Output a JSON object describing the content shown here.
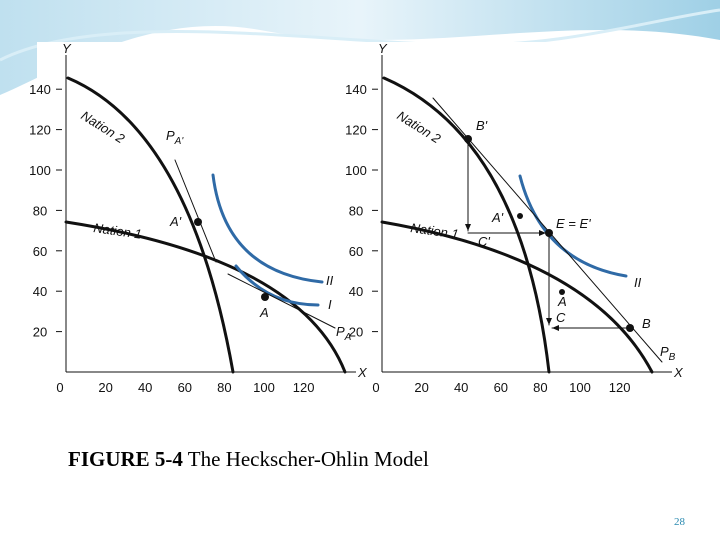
{
  "panels": [
    {
      "y_axis": "Y",
      "x_axis": "X",
      "yticks": [
        140,
        120,
        100,
        80,
        60,
        40,
        20
      ],
      "xticks": [
        0,
        20,
        40,
        60,
        80,
        100,
        120
      ],
      "labels": {
        "nation_2": "Nation 2",
        "nation_1": "Nation 1",
        "price_a_prime": {
          "base": "P",
          "sub": "A'"
        },
        "a_prime": "A'",
        "a": "A",
        "indiff_2": "II",
        "indiff_1": "I",
        "price_a": {
          "base": "P",
          "sub": "A"
        }
      }
    },
    {
      "y_axis": "Y",
      "x_axis": "X",
      "yticks": [
        140,
        120,
        100,
        80,
        60,
        40,
        20
      ],
      "xticks": [
        0,
        20,
        40,
        60,
        80,
        100,
        120
      ],
      "labels": {
        "nation_2": "Nation 2",
        "nation_1": "Nation 1",
        "b_prime": "B'",
        "a_prime": "A'",
        "c_prime": "C'",
        "e": "E = E'",
        "a": "A",
        "c": "C",
        "b": "B",
        "indiff_2": "II",
        "price_b": {
          "base": "P",
          "sub": "B"
        }
      }
    }
  ],
  "caption": {
    "label": "FIGURE 5-4",
    "text": "The Heckscher-Ohlin Model"
  },
  "page_number": "28"
}
